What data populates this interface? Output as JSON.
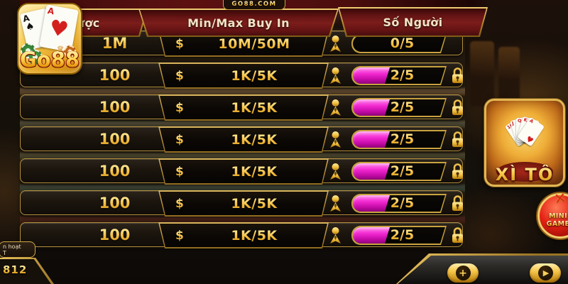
{
  "site_badge": "GO88.COM",
  "logo": {
    "word": "Go88",
    "card1_rank": "A",
    "card1_suit": "♠",
    "card2_rank": "A",
    "card2_suit": "♥",
    "crown": "♛"
  },
  "header": {
    "columns": [
      {
        "id": "bet",
        "label": "Cược"
      },
      {
        "id": "buyin",
        "label": "Min/Max Buy In"
      },
      {
        "id": "players",
        "label": "Số Người"
      }
    ]
  },
  "table": {
    "currency": "$",
    "rows": [
      {
        "bet": "1M",
        "buyin": "10M/50M",
        "players": "0/5",
        "occupied": 0,
        "capacity": 5,
        "locked": false
      },
      {
        "bet": "100",
        "buyin": "1K/5K",
        "players": "2/5",
        "occupied": 2,
        "capacity": 5,
        "locked": true
      },
      {
        "bet": "100",
        "buyin": "1K/5K",
        "players": "2/5",
        "occupied": 2,
        "capacity": 5,
        "locked": true
      },
      {
        "bet": "100",
        "buyin": "1K/5K",
        "players": "2/5",
        "occupied": 2,
        "capacity": 5,
        "locked": true
      },
      {
        "bet": "100",
        "buyin": "1K/5K",
        "players": "2/5",
        "occupied": 2,
        "capacity": 5,
        "locked": true
      },
      {
        "bet": "100",
        "buyin": "1K/5K",
        "players": "2/5",
        "occupied": 2,
        "capacity": 5,
        "locked": true
      },
      {
        "bet": "100",
        "buyin": "1K/5K",
        "players": "2/5",
        "occupied": 2,
        "capacity": 5,
        "locked": true
      }
    ]
  },
  "side_panel": {
    "banner": {
      "title": "XÌ TỐ",
      "cards": [
        "10",
        "J",
        "Q",
        "K",
        "A"
      ],
      "suit": "♥"
    },
    "mini_game": {
      "line1": "MINI",
      "line2": "GAME",
      "x_glyph": "✕"
    }
  },
  "footer": {
    "event_label_line1": "n hoạt",
    "event_label_line2": "T",
    "balance_value": "812",
    "add_glyph": "+",
    "play_glyph": "▶"
  },
  "colors": {
    "gold": "#f3c84f",
    "magenta": "#e724cd",
    "header_red": "#7a1c1b",
    "row_bg": "#1b150e"
  }
}
